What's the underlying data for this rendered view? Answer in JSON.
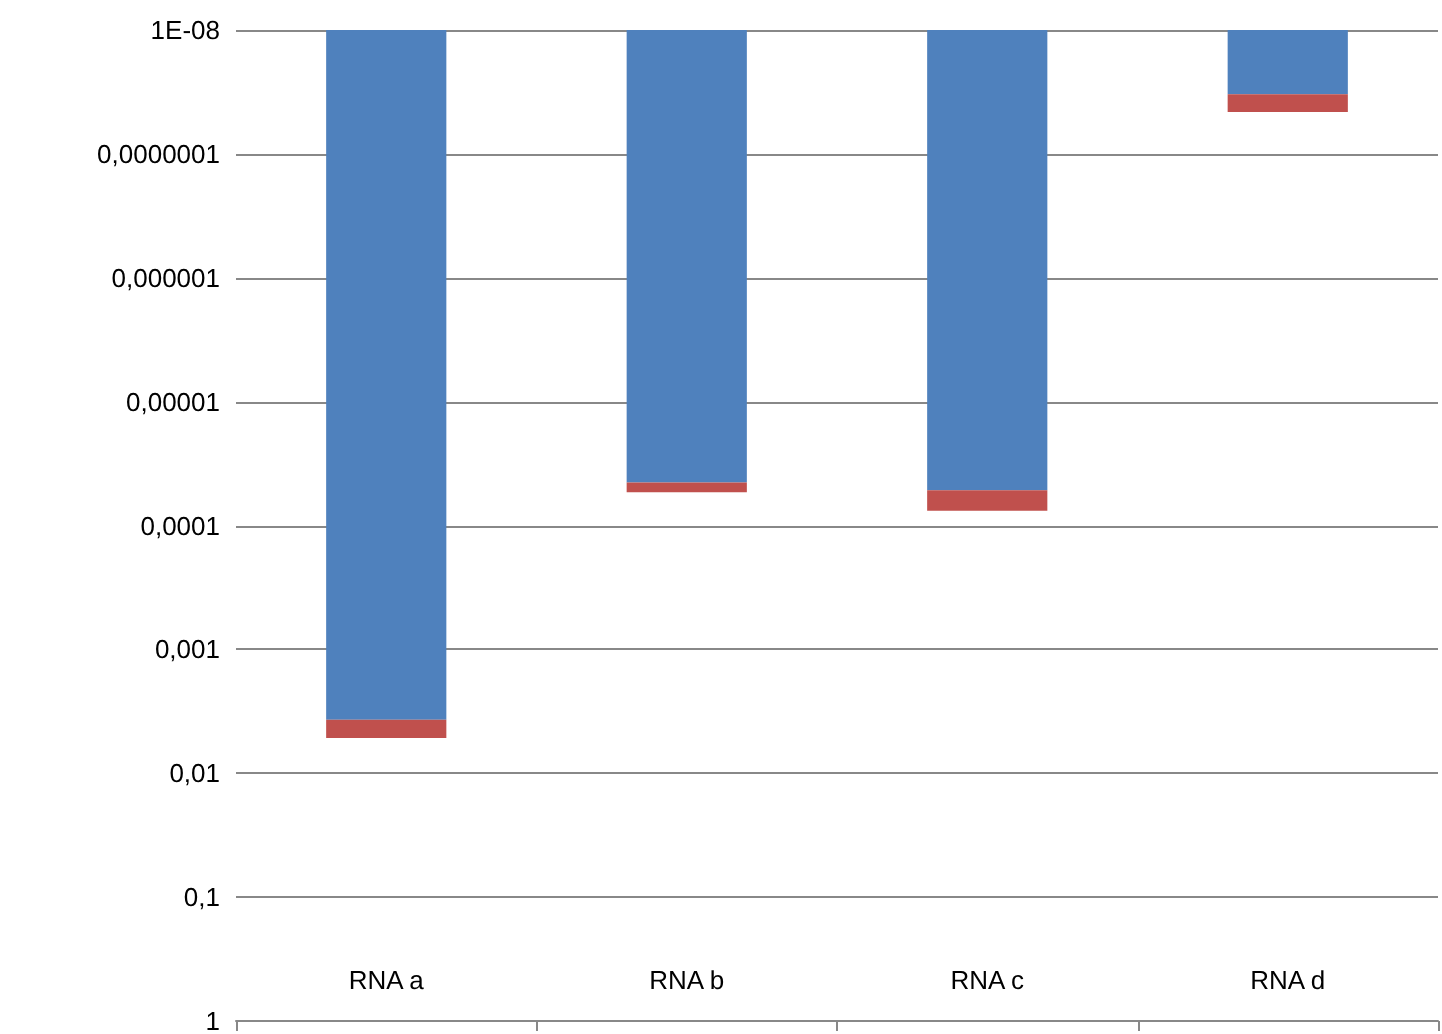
{
  "chart_data": {
    "type": "bar",
    "stacked": true,
    "log": "y",
    "grid": "y",
    "categories": [
      "RNA a",
      "RNA b",
      "RNA c",
      "RNA d"
    ],
    "series": [
      {
        "color": "#4f81bd",
        "values": [
          0.0037,
          4.5e-05,
          5.2e-05,
          3.3e-08
        ]
      },
      {
        "color": "#c0504d",
        "values": [
          0.0015,
          9e-06,
          2.4e-05,
          1.3e-08
        ]
      }
    ],
    "ylim": [
      1,
      1e-08
    ],
    "yticks": [
      {
        "value": 1e-08,
        "label": "1E-08"
      },
      {
        "value": 1e-07,
        "label": "0,0000001"
      },
      {
        "value": 1e-06,
        "label": "0,000001"
      },
      {
        "value": 1e-05,
        "label": "0,00001"
      },
      {
        "value": 0.0001,
        "label": "0,0001"
      },
      {
        "value": 0.001,
        "label": "0,001"
      },
      {
        "value": 0.01,
        "label": "0,01"
      },
      {
        "value": 0.1,
        "label": "0,1"
      },
      {
        "value": 1,
        "label": "1"
      }
    ]
  }
}
